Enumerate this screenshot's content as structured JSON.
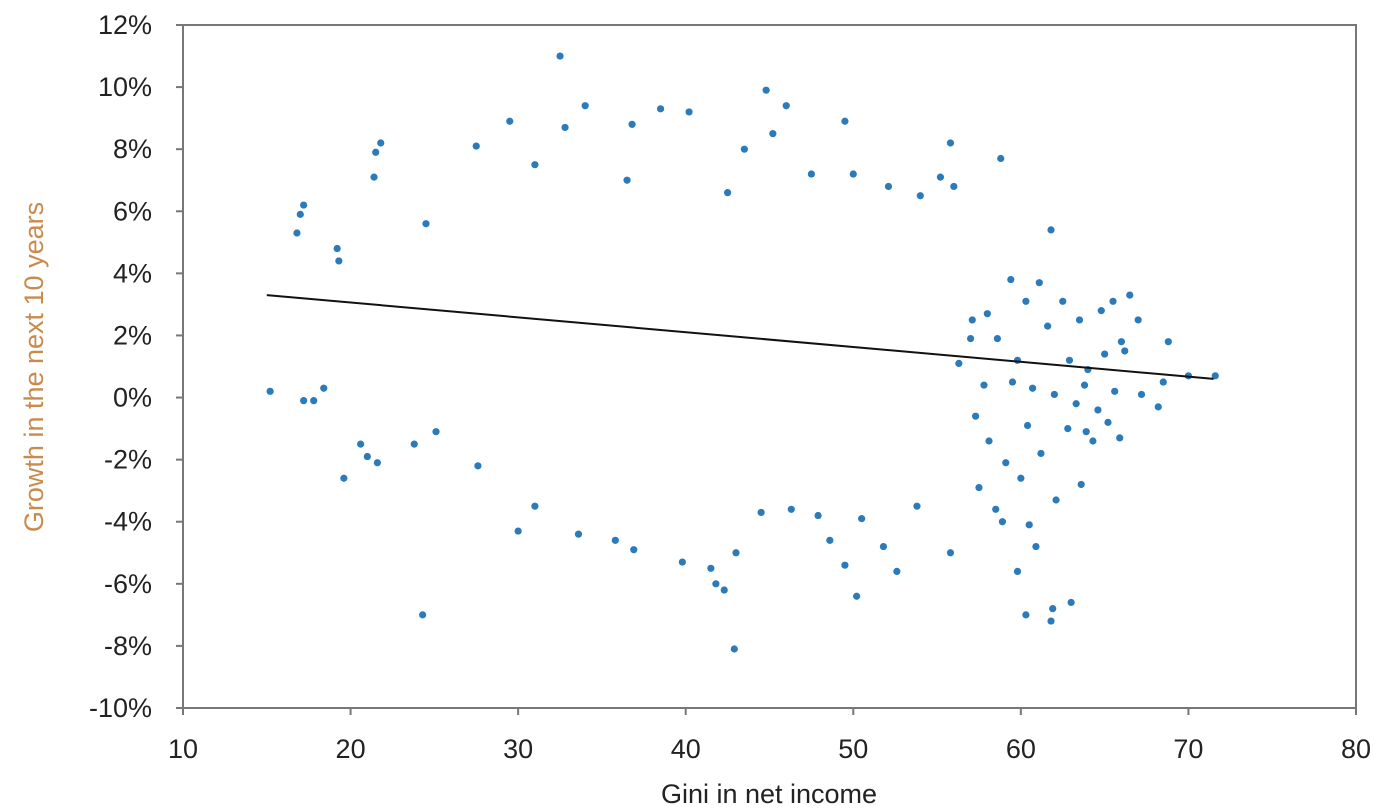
{
  "chart_data": {
    "type": "scatter",
    "title": "",
    "xlabel": "Gini in net income",
    "ylabel": "Growth in the next 10 years",
    "xlim": [
      10,
      80
    ],
    "ylim": [
      -10,
      12
    ],
    "x_ticks": [
      10,
      20,
      30,
      40,
      50,
      60,
      70,
      80
    ],
    "x_tick_labels": [
      "10",
      "20",
      "30",
      "40",
      "50",
      "60",
      "70",
      "80"
    ],
    "y_ticks": [
      12,
      10,
      8,
      6,
      4,
      2,
      0,
      -2,
      -4,
      -6,
      -8,
      -10
    ],
    "y_tick_labels": [
      "12%",
      "10%",
      "8%",
      "6%",
      "4%",
      "2%",
      "0%",
      "-2%",
      "-4%",
      "-6%",
      "-8%",
      "-10%"
    ],
    "grid": false,
    "legend": "none",
    "colors": {
      "points": "#2b7bba",
      "trendline": "#111111",
      "xlabel": "#222222",
      "ylabel": "#c98b4c",
      "frame": "#777777"
    },
    "trendline": {
      "x": [
        15,
        71.5
      ],
      "y": [
        3.3,
        0.6
      ]
    },
    "series": [
      {
        "points": [
          [
            32.5,
            11.0
          ],
          [
            44.8,
            9.9
          ],
          [
            46.0,
            9.4
          ],
          [
            34.0,
            9.4
          ],
          [
            38.5,
            9.3
          ],
          [
            40.2,
            9.2
          ],
          [
            49.5,
            8.9
          ],
          [
            29.5,
            8.9
          ],
          [
            32.8,
            8.7
          ],
          [
            36.8,
            8.8
          ],
          [
            21.8,
            8.2
          ],
          [
            21.5,
            7.9
          ],
          [
            27.5,
            8.1
          ],
          [
            43.5,
            8.0
          ],
          [
            55.8,
            8.2
          ],
          [
            45.2,
            8.5
          ],
          [
            58.8,
            7.7
          ],
          [
            21.4,
            7.1
          ],
          [
            31.0,
            7.5
          ],
          [
            47.5,
            7.2
          ],
          [
            50.0,
            7.2
          ],
          [
            36.5,
            7.0
          ],
          [
            17.2,
            6.2
          ],
          [
            17.0,
            5.9
          ],
          [
            16.8,
            5.3
          ],
          [
            19.2,
            4.8
          ],
          [
            19.3,
            4.4
          ],
          [
            54.0,
            6.5
          ],
          [
            55.2,
            7.1
          ],
          [
            56.0,
            6.8
          ],
          [
            61.8,
            5.4
          ],
          [
            52.1,
            6.8
          ],
          [
            42.5,
            6.6
          ],
          [
            24.5,
            5.6
          ],
          [
            15.2,
            0.2
          ],
          [
            17.2,
            -0.1
          ],
          [
            17.8,
            -0.1
          ],
          [
            18.4,
            0.3
          ],
          [
            20.6,
            -1.5
          ],
          [
            21.0,
            -1.9
          ],
          [
            21.6,
            -2.1
          ],
          [
            19.6,
            -2.6
          ],
          [
            23.8,
            -1.5
          ],
          [
            25.1,
            -1.1
          ],
          [
            24.3,
            -7.0
          ],
          [
            27.6,
            -2.2
          ],
          [
            30.0,
            -4.3
          ],
          [
            31.0,
            -3.5
          ],
          [
            33.6,
            -4.4
          ],
          [
            35.8,
            -4.6
          ],
          [
            36.9,
            -4.9
          ],
          [
            39.8,
            -5.3
          ],
          [
            41.5,
            -5.5
          ],
          [
            42.3,
            -6.2
          ],
          [
            42.9,
            -8.1
          ],
          [
            43.0,
            -5.0
          ],
          [
            41.8,
            -6.0
          ],
          [
            44.5,
            -3.7
          ],
          [
            46.3,
            -3.6
          ],
          [
            47.9,
            -3.8
          ],
          [
            48.6,
            -4.6
          ],
          [
            49.5,
            -5.4
          ],
          [
            50.2,
            -6.4
          ],
          [
            50.5,
            -3.9
          ],
          [
            51.8,
            -4.8
          ],
          [
            52.6,
            -5.6
          ],
          [
            53.8,
            -3.5
          ],
          [
            55.8,
            -5.0
          ],
          [
            57.5,
            -2.9
          ],
          [
            58.5,
            -3.6
          ],
          [
            58.9,
            -4.0
          ],
          [
            59.8,
            -5.6
          ],
          [
            60.5,
            -4.1
          ],
          [
            60.9,
            -4.8
          ],
          [
            60.3,
            -7.0
          ],
          [
            61.8,
            -7.2
          ],
          [
            61.9,
            -6.8
          ],
          [
            63.0,
            -6.6
          ],
          [
            62.1,
            -3.3
          ],
          [
            63.6,
            -2.8
          ],
          [
            64.3,
            -1.4
          ],
          [
            65.9,
            -1.3
          ],
          [
            62.5,
            3.1
          ],
          [
            63.5,
            2.5
          ],
          [
            64.8,
            2.8
          ],
          [
            65.5,
            3.1
          ],
          [
            66.5,
            3.3
          ],
          [
            66.0,
            1.8
          ],
          [
            66.2,
            1.5
          ],
          [
            68.8,
            1.8
          ],
          [
            68.5,
            0.5
          ],
          [
            70.0,
            0.7
          ],
          [
            71.6,
            0.7
          ],
          [
            67.2,
            0.1
          ],
          [
            68.2,
            -0.3
          ],
          [
            59.4,
            3.8
          ],
          [
            60.3,
            3.1
          ],
          [
            61.1,
            3.7
          ],
          [
            58.0,
            2.7
          ],
          [
            57.1,
            2.5
          ],
          [
            58.6,
            1.9
          ],
          [
            59.8,
            1.2
          ],
          [
            60.7,
            0.3
          ],
          [
            62.0,
            0.1
          ],
          [
            63.3,
            -0.2
          ],
          [
            64.6,
            -0.4
          ],
          [
            65.6,
            0.2
          ],
          [
            57.3,
            -0.6
          ],
          [
            58.1,
            -1.4
          ],
          [
            59.1,
            -2.1
          ],
          [
            60.0,
            -2.6
          ],
          [
            61.2,
            -1.8
          ],
          [
            62.8,
            -1.0
          ],
          [
            63.9,
            -1.1
          ],
          [
            65.2,
            -0.8
          ],
          [
            56.3,
            1.1
          ],
          [
            57.0,
            1.9
          ],
          [
            61.6,
            2.3
          ],
          [
            62.9,
            1.2
          ],
          [
            64.0,
            0.9
          ],
          [
            65.0,
            1.4
          ],
          [
            67.0,
            2.5
          ],
          [
            57.8,
            0.4
          ],
          [
            59.5,
            0.5
          ],
          [
            60.4,
            -0.9
          ],
          [
            63.8,
            0.4
          ]
        ]
      }
    ]
  }
}
